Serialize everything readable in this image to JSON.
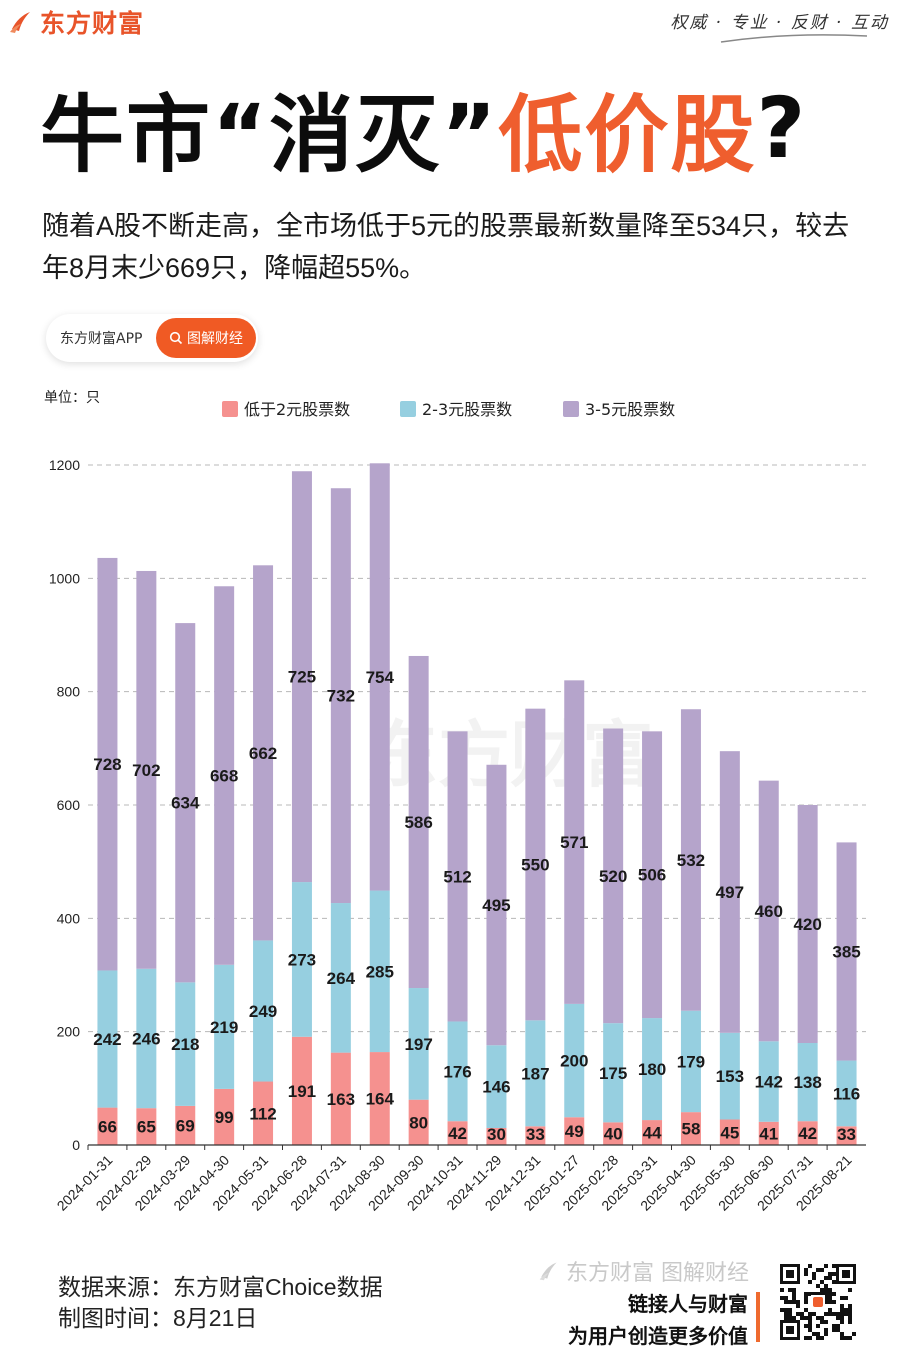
{
  "header": {
    "logo_text": "东方财富",
    "slogan": "权威 · 专业 · 反财 · 互动"
  },
  "title": {
    "part1": "牛市“消灭”",
    "part2": "低价股",
    "part3": "?"
  },
  "subtitle": "随着A股不断走高，全市场低于5元的股票最新数量降至534只，较去年8月末少669只，降幅超55%。",
  "app_pill": {
    "app_name": "东方财富APP",
    "button_label": "图解财经"
  },
  "chart_data": {
    "type": "bar",
    "stacked": true,
    "unit_label": "单位：只",
    "categories": [
      "2024-01-31",
      "2024-02-29",
      "2024-03-29",
      "2024-04-30",
      "2024-05-31",
      "2024-06-28",
      "2024-07-31",
      "2024-08-30",
      "2024-09-30",
      "2024-10-31",
      "2024-11-29",
      "2024-12-31",
      "2025-01-27",
      "2025-02-28",
      "2025-03-31",
      "2025-04-30",
      "2025-05-30",
      "2025-06-30",
      "2025-07-31",
      "2025-08-21"
    ],
    "series": [
      {
        "name": "低于2元股票数",
        "color": "#f5918f",
        "values": [
          66,
          65,
          69,
          99,
          112,
          191,
          163,
          164,
          80,
          42,
          30,
          33,
          49,
          40,
          44,
          58,
          45,
          41,
          42,
          33
        ]
      },
      {
        "name": "2-3元股票数",
        "color": "#96cfe0",
        "values": [
          242,
          246,
          218,
          219,
          249,
          273,
          264,
          285,
          197,
          176,
          146,
          187,
          200,
          175,
          180,
          179,
          153,
          142,
          138,
          116
        ]
      },
      {
        "name": "3-5元股票数",
        "color": "#b5a4cb",
        "values": [
          728,
          702,
          634,
          668,
          662,
          725,
          732,
          754,
          586,
          512,
          495,
          550,
          571,
          520,
          506,
          532,
          497,
          460,
          420,
          385
        ]
      }
    ],
    "ylim": [
      0,
      1200
    ],
    "yticks": [
      0,
      200,
      400,
      600,
      800,
      1000,
      1200
    ],
    "grid": true,
    "legend_position": "top",
    "watermark": "东方财富"
  },
  "footer": {
    "source_label": "数据来源：",
    "source_value": "东方财富Choice数据",
    "date_label": "制图时间：",
    "date_value": "8月21日",
    "brand": "东方财富 图解财经",
    "slogan_line1": "链接人与财富",
    "slogan_line2": "为用户创造更多价值"
  },
  "colors": {
    "brand_orange": "#ef5e2e",
    "grid": "#b8b8b8"
  }
}
